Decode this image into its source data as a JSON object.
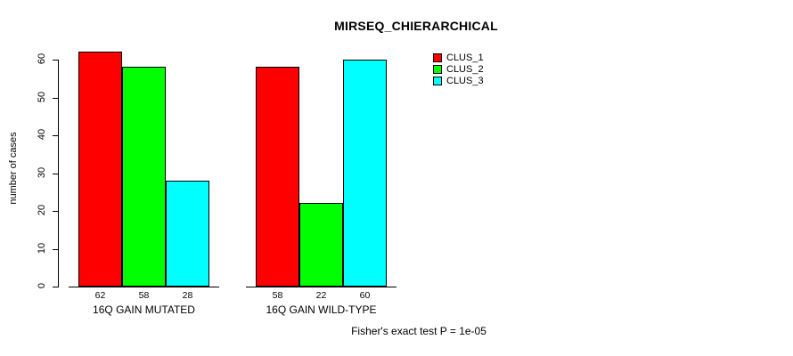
{
  "chart_data": {
    "type": "bar",
    "title": "MIRSEQ_CHIERARCHICAL",
    "ylabel": "number of cases",
    "xlabel": "",
    "categories": [
      "16Q GAIN MUTATED",
      "16Q GAIN WILD-TYPE"
    ],
    "series": [
      {
        "name": "CLUS_1",
        "color": "#ff0000",
        "values": [
          62,
          58
        ]
      },
      {
        "name": "CLUS_2",
        "color": "#00ff00",
        "values": [
          58,
          22
        ]
      },
      {
        "name": "CLUS_3",
        "color": "#00ffff",
        "values": [
          28,
          60
        ]
      }
    ],
    "bar_value_labels": [
      [
        62,
        58,
        28
      ],
      [
        58,
        22,
        60
      ]
    ],
    "yticks": [
      0,
      10,
      20,
      30,
      40,
      50,
      60
    ],
    "ylim": [
      0,
      60
    ],
    "grid": false,
    "legend_position": "top-right",
    "annotation": "Fisher's exact test P = 1e-05"
  }
}
